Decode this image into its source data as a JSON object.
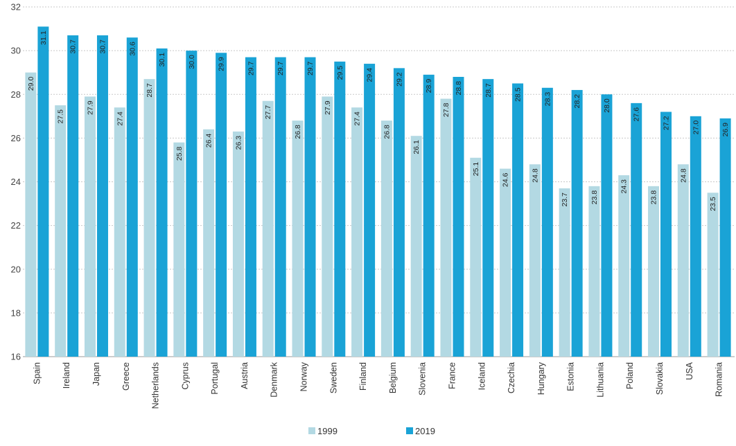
{
  "chart_data": {
    "type": "bar",
    "title": "",
    "xlabel": "",
    "ylabel": "",
    "ylim": [
      16,
      32
    ],
    "yticks": [
      16,
      18,
      20,
      22,
      24,
      26,
      28,
      30,
      32
    ],
    "grid": true,
    "legend": "bottom-center",
    "categories": [
      "Spain",
      "Ireland",
      "Japan",
      "Greece",
      "Netherlands",
      "Cyprus",
      "Portugal",
      "Austria",
      "Denmark",
      "Norway",
      "Sweden",
      "Finland",
      "Belgium",
      "Slovenia",
      "France",
      "Iceland",
      "Czechia",
      "Hungary",
      "Estonia",
      "Lithuania",
      "Poland",
      "Slovakia",
      "USA",
      "Romania"
    ],
    "series": [
      {
        "name": "1999",
        "color": "#b3d9e3",
        "values": [
          29.0,
          27.5,
          27.9,
          27.4,
          28.7,
          25.8,
          26.4,
          26.3,
          27.7,
          26.8,
          27.9,
          27.4,
          26.8,
          26.1,
          27.8,
          25.1,
          24.6,
          24.8,
          23.7,
          23.8,
          24.3,
          23.8,
          24.8,
          23.5
        ]
      },
      {
        "name": "2019",
        "color": "#1aa3d6",
        "values": [
          31.1,
          30.7,
          30.7,
          30.6,
          30.1,
          30.0,
          29.9,
          29.7,
          29.7,
          29.7,
          29.5,
          29.4,
          29.2,
          28.9,
          28.8,
          28.7,
          28.5,
          28.3,
          28.2,
          28.0,
          27.6,
          27.2,
          27.0,
          26.9
        ]
      }
    ]
  }
}
